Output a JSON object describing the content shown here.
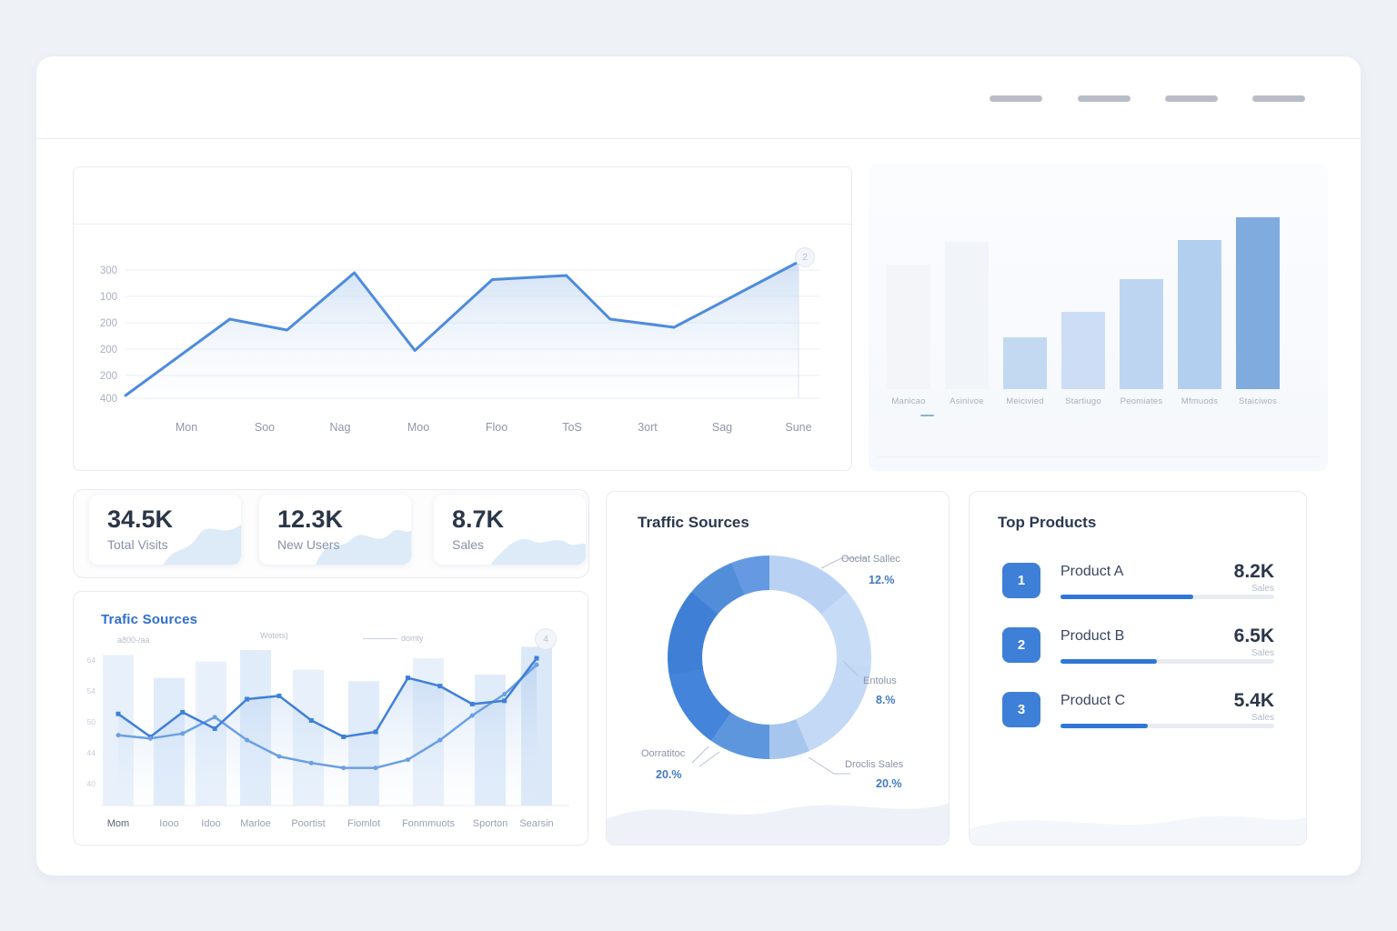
{
  "page": {
    "background": "#eef1f6",
    "accent": "#3e7fd8"
  },
  "header": {
    "nav_placeholder_count": 4
  },
  "chart_data": [
    {
      "id": "visits_chart",
      "type": "line",
      "title": "",
      "y_ticks": [
        "300",
        "100",
        "200",
        "200",
        "200",
        "400"
      ],
      "x_labels": [
        "Mon",
        "Soo",
        "Nag",
        "Moo",
        "Floo",
        "ToS",
        "3ort",
        "Sag",
        "Sune"
      ],
      "series": [
        {
          "name": "visits",
          "x": [
            0.0,
            0.155,
            0.24,
            0.34,
            0.43,
            0.545,
            0.655,
            0.72,
            0.815,
            1.0
          ],
          "values": [
            0.02,
            0.58,
            0.5,
            0.92,
            0.35,
            0.87,
            0.9,
            0.58,
            0.52,
            1.0
          ]
        }
      ],
      "badge": "2",
      "grid": true,
      "colors": {
        "line": "#4e8bdc",
        "area_top": "#a9c7ec",
        "area_bottom": "#eaf2fb",
        "grid": "#e9edf4",
        "tick": "#a9b0c2",
        "xlabel": "#8e97a9"
      }
    },
    {
      "id": "category_chart",
      "type": "bar",
      "labels": [
        "Manicao",
        "Asinivoe",
        "Meicivied",
        "Startiugo",
        "Peomiates",
        "Mfmuods",
        "Staiciwos"
      ],
      "values": [
        137,
        162,
        57,
        85,
        121,
        164,
        189
      ],
      "ylim": [
        0,
        200
      ],
      "colors": [
        "#f3f5f9",
        "#f1f4f8",
        "#c3d9f2",
        "#cdddf5",
        "#bdd5f1",
        "#b3cfef",
        "#7fabdf"
      ]
    },
    {
      "id": "traffic_combo",
      "type": "line",
      "title": "Trafic Sources",
      "x_labels": [
        "Mom",
        "Iooo",
        "Idoo",
        "Marloe",
        "Poortist",
        "Fiomlot",
        "Fonmmuots",
        "Sporton",
        "Searsin"
      ],
      "y_ticks": [
        "64",
        "54",
        "50",
        "44",
        "40"
      ],
      "annotations": [
        "a800-/aa",
        "Wotets)",
        "domty"
      ],
      "badge": "4",
      "bars": [
        0.92,
        0.78,
        0.88,
        0.95,
        0.83,
        0.76,
        0.9,
        0.8,
        0.97
      ],
      "series": [
        {
          "name": "series-a",
          "values": [
            0.56,
            0.42,
            0.57,
            0.47,
            0.65,
            0.67,
            0.52,
            0.42,
            0.45,
            0.78,
            0.73,
            0.62,
            0.64,
            0.9
          ]
        },
        {
          "name": "series-b",
          "values": [
            0.43,
            0.41,
            0.44,
            0.54,
            0.4,
            0.3,
            0.26,
            0.23,
            0.23,
            0.28,
            0.4,
            0.55,
            0.68,
            0.86
          ]
        }
      ],
      "colors": {
        "line_a": "#3f7fd7",
        "line_b": "#6b9fe3",
        "bar": "#e0ecfa",
        "bar_alt": "#d6e5f8",
        "bar_last": "#cfe0f6"
      }
    },
    {
      "id": "traffic_donut",
      "type": "pie",
      "title": "Traffic Sources",
      "segments": [
        {
          "deg": 50,
          "color": "#b9d2f3"
        },
        {
          "deg": 45,
          "color": "#c6dbf6"
        },
        {
          "deg": 62,
          "color": "#c3d9f5"
        },
        {
          "deg": 23,
          "color": "#a6c6ee"
        },
        {
          "deg": 35,
          "color": "#5e96de"
        },
        {
          "deg": 45,
          "color": "#4484da"
        },
        {
          "deg": 50,
          "color": "#3f80d6"
        },
        {
          "deg": 28,
          "color": "#528dda"
        },
        {
          "deg": 22,
          "color": "#659ae2"
        }
      ],
      "callouts": [
        {
          "label": "Ooclat Sallec",
          "value": "12.%"
        },
        {
          "label": "Entolus",
          "value": "8.%"
        },
        {
          "label": "Droclis Sales",
          "value": "20.%"
        },
        {
          "label": "Oorratitoc",
          "value": "20.%"
        }
      ]
    }
  ],
  "stat_cards": [
    {
      "value": "34.5K",
      "label": "Total Visits"
    },
    {
      "value": "12.3K",
      "label": "New Users"
    },
    {
      "value": "8.7K",
      "label": "Sales"
    }
  ],
  "top_products": {
    "title": "Top Products",
    "items": [
      {
        "rank": "1",
        "name": "Product A",
        "value": "8.2K",
        "caption": "Sales",
        "progress": 0.62
      },
      {
        "rank": "2",
        "name": "Product B",
        "value": "6.5K",
        "caption": "Sales",
        "progress": 0.45
      },
      {
        "rank": "3",
        "name": "Product C",
        "value": "5.4K",
        "caption": "Sales",
        "progress": 0.41
      }
    ]
  }
}
